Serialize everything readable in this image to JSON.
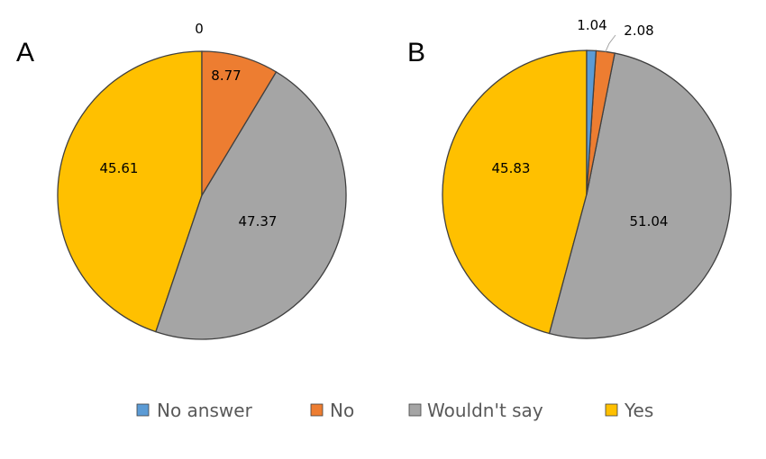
{
  "chart_data": [
    {
      "type": "pie",
      "panel_label": "A",
      "categories": [
        "No answer",
        "No",
        "Wouldn't say",
        "Yes"
      ],
      "values": [
        0,
        8.77,
        47.37,
        45.61
      ],
      "labels": [
        "0",
        "8.77",
        "47.37",
        "45.61"
      ]
    },
    {
      "type": "pie",
      "panel_label": "B",
      "categories": [
        "No answer",
        "No",
        "Wouldn't say",
        "Yes"
      ],
      "values": [
        1.04,
        2.08,
        51.04,
        45.83
      ],
      "labels": [
        "1.04",
        "2.08",
        "51.04",
        "45.83"
      ]
    }
  ],
  "legend": {
    "placement": "bottom",
    "items": [
      {
        "label": "No answer",
        "color": "#5B9BD5"
      },
      {
        "label": "No",
        "color": "#ED7D31"
      },
      {
        "label": "Wouldn't say",
        "color": "#A5A5A5"
      },
      {
        "label": "Yes",
        "color": "#FFC000"
      }
    ]
  },
  "colors": {
    "slice_border": "#404040"
  }
}
